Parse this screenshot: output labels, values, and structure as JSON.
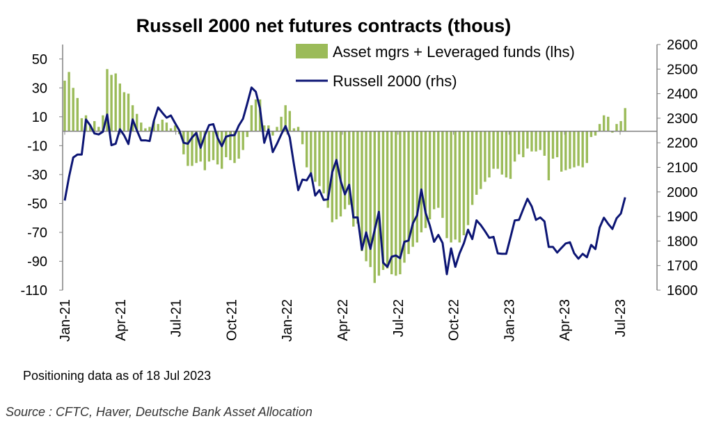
{
  "chart_data": {
    "type": "bar+line",
    "title": "Russell 2000 net futures contracts  (thous)",
    "legend": [
      "Asset mgrs + Leveraged funds (lhs)",
      "Russell 2000 (rhs)"
    ],
    "legend_placement": "top-right",
    "left_axis": {
      "ylim": [
        -110,
        60
      ],
      "ticks": [
        "50",
        "30",
        "10",
        "-10",
        "-30",
        "-50",
        "-70",
        "-90",
        "-110"
      ],
      "tick_values": [
        50,
        30,
        10,
        -10,
        -30,
        -50,
        -70,
        -90,
        -110
      ]
    },
    "right_axis": {
      "ylim": [
        1600,
        2600
      ],
      "ticks": [
        "2600",
        "2500",
        "2400",
        "2300",
        "2200",
        "2100",
        "2000",
        "1900",
        "1800",
        "1700",
        "1600"
      ],
      "tick_values": [
        2600,
        2500,
        2400,
        2300,
        2200,
        2100,
        2000,
        1900,
        1800,
        1700,
        1600
      ]
    },
    "x_ticks": [
      "Jan-21",
      "Apr-21",
      "Jul-21",
      "Oct-21",
      "Jan-22",
      "Apr-22",
      "Jul-22",
      "Oct-22",
      "Jan-23",
      "Apr-23",
      "Jul-23"
    ],
    "x_tick_months": [
      0,
      3,
      6,
      9,
      12,
      15,
      18,
      21,
      24,
      27,
      30
    ],
    "frequency": "weekly, starting Jan-21",
    "colors": {
      "bars": "#9bbb59",
      "line": "#0c1574",
      "axis": "#808080"
    },
    "series": [
      {
        "name": "Asset mgrs + Leveraged funds (lhs)",
        "type": "bar",
        "values": [
          35,
          41,
          30,
          23,
          9,
          11,
          4,
          7,
          3,
          11,
          43,
          39,
          40,
          33,
          27,
          26,
          18,
          12,
          6,
          2,
          3,
          7,
          5,
          8,
          6,
          2,
          4,
          -2,
          -16,
          -24,
          -24,
          -22,
          -21,
          -27,
          -21,
          -20,
          -23,
          -26,
          -18,
          -20,
          -22,
          -19,
          -13,
          -4,
          18,
          22,
          22,
          4,
          4,
          -3,
          3,
          10,
          18,
          14,
          2,
          3,
          -9,
          -25,
          -29,
          -35,
          -38,
          -43,
          -53,
          -63,
          -61,
          -59,
          -54,
          -51,
          -66,
          -64,
          -83,
          -90,
          -94,
          -105,
          -100,
          -96,
          -95,
          -99,
          -100,
          -99,
          -91,
          -85,
          -80,
          -77,
          -70,
          -67,
          -61,
          -54,
          -53,
          -60,
          -74,
          -77,
          -75,
          -77,
          -72,
          -65,
          -51,
          -44,
          -40,
          -35,
          -32,
          -26,
          -26,
          -30,
          -32,
          -33,
          -21,
          -16,
          -18,
          -12,
          -14,
          -14,
          -13,
          -17,
          -34,
          -19,
          -18,
          -28,
          -27,
          -26,
          -25,
          -24,
          -25,
          -22,
          -4,
          -3,
          5,
          11,
          10,
          -1,
          5,
          7,
          16
        ]
      },
      {
        "name": "Russell 2000 (rhs)",
        "type": "line",
        "values": [
          1965,
          2060,
          2140,
          2152,
          2152,
          2295,
          2271,
          2238,
          2234,
          2245,
          2315,
          2190,
          2196,
          2255,
          2230,
          2195,
          2295,
          2250,
          2210,
          2210,
          2207,
          2290,
          2344,
          2322,
          2302,
          2311,
          2280,
          2250,
          2200,
          2196,
          2222,
          2240,
          2180,
          2230,
          2272,
          2276,
          2220,
          2186,
          2225,
          2230,
          2231,
          2270,
          2298,
          2360,
          2425,
          2408,
          2340,
          2200,
          2254,
          2162,
          2196,
          2234,
          2268,
          2222,
          2111,
          2007,
          2050,
          2047,
          2076,
          1985,
          2007,
          1967,
          1970,
          2080,
          2130,
          2045,
          1990,
          2029,
          1896,
          1896,
          1765,
          1835,
          1768,
          1845,
          1919,
          1712,
          1695,
          1736,
          1741,
          1730,
          1797,
          1802,
          1872,
          1905,
          2010,
          1915,
          1863,
          1797,
          1825,
          1792,
          1665,
          1770,
          1695,
          1750,
          1790,
          1846,
          1808,
          1884,
          1865,
          1840,
          1813,
          1817,
          1750,
          1748,
          1748,
          1815,
          1884,
          1886,
          1930,
          1972,
          1941,
          1886,
          1896,
          1880,
          1776,
          1776,
          1753,
          1772,
          1790,
          1795,
          1750,
          1728,
          1748,
          1734,
          1784,
          1767,
          1855,
          1895,
          1870,
          1849,
          1893,
          1912,
          1978
        ]
      }
    ]
  },
  "footnote": "Positioning data as of 18 Jul 2023",
  "source": "Source : CFTC, Haver, Deutsche Bank Asset Allocation"
}
